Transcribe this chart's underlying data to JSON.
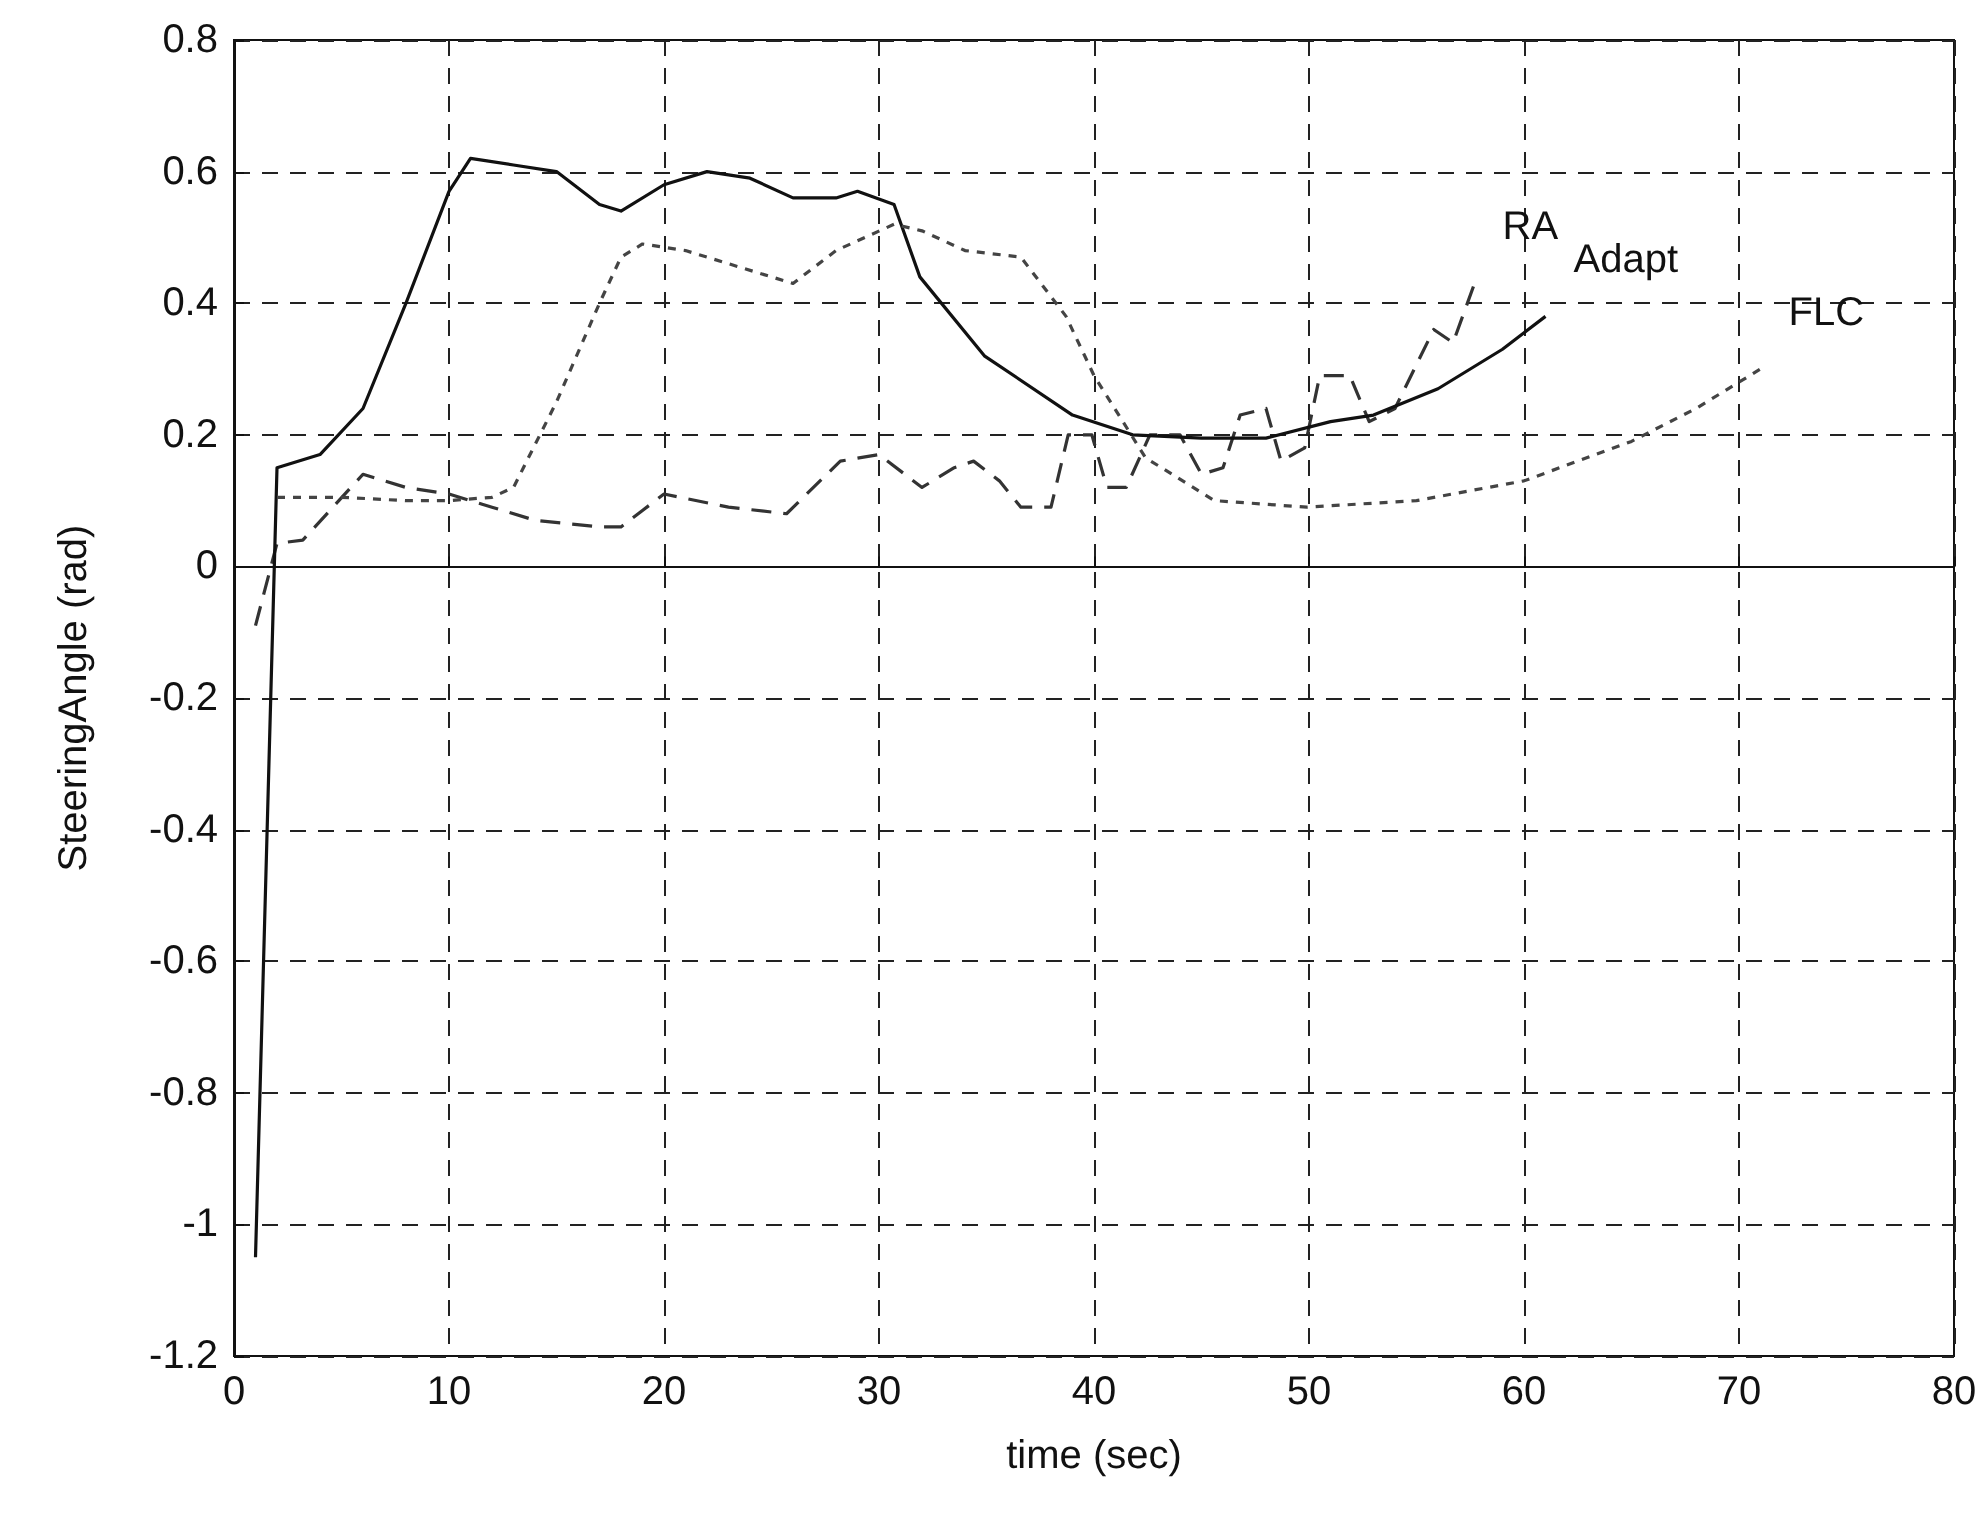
{
  "chart_data": {
    "type": "line",
    "xlabel": "time (sec)",
    "ylabel": "SteeringAngle (rad)",
    "xlim": [
      0,
      80
    ],
    "xticks": [
      0,
      10,
      20,
      30,
      40,
      50,
      60,
      70,
      80
    ],
    "ylim": [
      -1.2,
      0.8
    ],
    "yticks": [
      -1.2,
      -1,
      -0.8,
      -0.6,
      -0.4,
      -0.2,
      0,
      0.2,
      0.4,
      0.6,
      0.8
    ],
    "grid": true,
    "legend": false,
    "marker": "none",
    "series": [
      {
        "name": "RA",
        "color": "#333333",
        "line_style": "dashed",
        "x": [
          1,
          2,
          3.2,
          6,
          8,
          10,
          12,
          14,
          17,
          18,
          20,
          23,
          25.7,
          28.2,
          30,
          32,
          33.5,
          34.4,
          35.6,
          36.6,
          38,
          38.8,
          39.9,
          40.6,
          41.5,
          42.6,
          44,
          45,
          46,
          46.8,
          48,
          48.7,
          49.8,
          50.5,
          51.9,
          52.8,
          54,
          55.8,
          56.7,
          57.7
        ],
        "values": [
          -0.09,
          0.035,
          0.04,
          0.14,
          0.12,
          0.11,
          0.09,
          0.07,
          0.06,
          0.06,
          0.11,
          0.09,
          0.08,
          0.16,
          0.17,
          0.12,
          0.15,
          0.16,
          0.13,
          0.09,
          0.09,
          0.2,
          0.2,
          0.12,
          0.12,
          0.2,
          0.2,
          0.14,
          0.15,
          0.23,
          0.24,
          0.16,
          0.18,
          0.29,
          0.29,
          0.22,
          0.24,
          0.36,
          0.34,
          0.43
        ]
      },
      {
        "name": "Adapt",
        "color": "#111111",
        "line_style": "solid",
        "x": [
          1,
          2,
          4,
          6,
          8,
          10,
          11,
          13,
          15,
          17,
          18,
          20,
          22,
          24,
          26,
          28,
          29,
          30.7,
          31.9,
          34.9,
          39,
          41.8,
          45,
          48,
          51,
          53,
          56,
          59,
          61
        ],
        "values": [
          -1.05,
          0.15,
          0.17,
          0.24,
          0.4,
          0.57,
          0.62,
          0.61,
          0.6,
          0.55,
          0.54,
          0.58,
          0.6,
          0.59,
          0.56,
          0.56,
          0.57,
          0.55,
          0.44,
          0.32,
          0.23,
          0.2,
          0.195,
          0.195,
          0.22,
          0.23,
          0.27,
          0.33,
          0.38
        ]
      },
      {
        "name": "FLC",
        "color": "#444444",
        "line_style": "dotted",
        "x": [
          2,
          5,
          8,
          10,
          12,
          13,
          15,
          17,
          18,
          19,
          21,
          23,
          25,
          26,
          28,
          30.7,
          32,
          34,
          36.6,
          38.7,
          40,
          42.4,
          45.6,
          49.9,
          55,
          60,
          65,
          68,
          71
        ],
        "values": [
          0.105,
          0.105,
          0.1,
          0.1,
          0.105,
          0.12,
          0.25,
          0.4,
          0.47,
          0.49,
          0.48,
          0.46,
          0.44,
          0.43,
          0.48,
          0.52,
          0.51,
          0.48,
          0.47,
          0.38,
          0.29,
          0.165,
          0.1,
          0.09,
          0.1,
          0.13,
          0.19,
          0.24,
          0.3
        ]
      }
    ]
  }
}
